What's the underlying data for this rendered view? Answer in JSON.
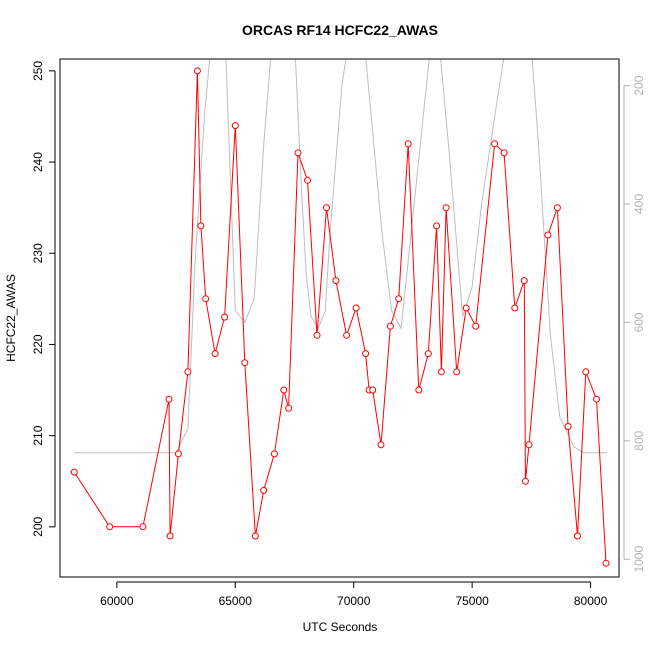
{
  "chart_data": {
    "type": "line",
    "title": "ORCAS RF14 HCFC22_AWAS",
    "xlabel": "UTC Seconds",
    "ylabel": "HCFC22_AWAS",
    "xlim": [
      57600,
      81200
    ],
    "ylim": [
      194.5,
      251.3
    ],
    "x_ticks": [
      60000,
      65000,
      70000,
      75000,
      80000
    ],
    "x_tick_labels": [
      "60000",
      "65000",
      "70000",
      "75000",
      "80000"
    ],
    "y_ticks": [
      200,
      210,
      220,
      230,
      240,
      250
    ],
    "y_tick_labels": [
      "200",
      "210",
      "220",
      "230",
      "240",
      "250"
    ],
    "y2_lim": [
      1030,
      155
    ],
    "y2_ticks": [
      200,
      400,
      600,
      800,
      1000
    ],
    "y2_tick_labels": [
      "200",
      "400",
      "600",
      "800",
      "1000"
    ],
    "colors": {
      "series": "#ff0000",
      "secondary": "#bebebe"
    },
    "series": [
      {
        "color": "#ff0000",
        "marker": "open-circle",
        "x": [
          58200,
          59700,
          61100,
          62200,
          62250,
          62600,
          63000,
          63400,
          63550,
          63750,
          64150,
          64550,
          65000,
          65400,
          65850,
          66200,
          66650,
          67050,
          67250,
          67650,
          68050,
          68450,
          68850,
          69250,
          69700,
          70100,
          70500,
          70650,
          70800,
          71150,
          71550,
          71900,
          72300,
          72750,
          73150,
          73500,
          73700,
          73900,
          74350,
          74750,
          75150,
          75950,
          76350,
          76800,
          77200,
          77250,
          77400,
          78200,
          78600,
          79050,
          79450,
          79800,
          80250,
          80650
        ],
        "values": [
          206,
          200,
          200,
          214,
          199,
          208,
          217,
          250,
          233,
          225,
          219,
          223,
          244,
          218,
          199,
          204,
          208,
          215,
          213,
          241,
          238,
          221,
          235,
          227,
          221,
          224,
          219,
          215,
          215,
          209,
          222,
          225,
          242,
          215,
          219,
          233,
          217,
          235,
          217,
          224,
          222,
          242,
          241,
          224,
          227,
          205,
          209,
          232,
          235,
          211,
          199,
          217,
          214,
          196
        ]
      },
      {
        "color": "#bebebe",
        "axis": "right",
        "x": [
          58200,
          62300,
          62500,
          63000,
          63300,
          63700,
          64000,
          64200,
          64500,
          65000,
          65400,
          65800,
          66200,
          66600,
          67000,
          67500,
          67800,
          68000,
          68200,
          68500,
          68800,
          69000,
          69500,
          70100,
          70500,
          71200,
          71600,
          72000,
          72500,
          73200,
          73500,
          74000,
          74600,
          75000,
          75400,
          76000,
          76500,
          77000,
          77400,
          77800,
          78300,
          78700,
          79300,
          79700,
          80700
        ],
        "values": [
          820,
          820,
          820,
          780,
          500,
          250,
          120,
          60,
          40,
          580,
          600,
          560,
          300,
          100,
          50,
          120,
          380,
          520,
          590,
          610,
          580,
          450,
          200,
          40,
          150,
          450,
          580,
          610,
          420,
          150,
          80,
          300,
          590,
          540,
          400,
          240,
          110,
          40,
          80,
          300,
          620,
          760,
          810,
          820,
          820
        ]
      }
    ]
  }
}
